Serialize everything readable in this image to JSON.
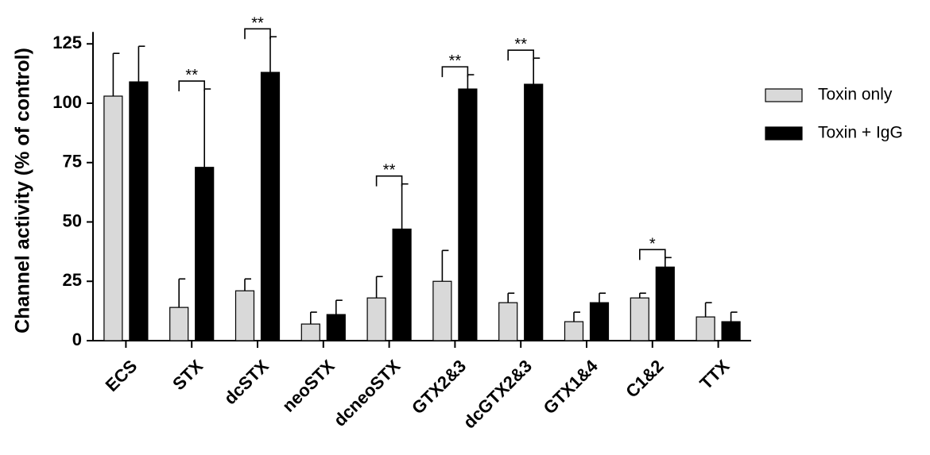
{
  "chart_data": {
    "type": "bar",
    "ylabel": "Channel activity (% of control)",
    "xlabel": "",
    "ylim": [
      0,
      130
    ],
    "yticks": [
      0,
      25,
      50,
      75,
      100,
      125
    ],
    "legend_position": "right",
    "categories": [
      "ECS",
      "STX",
      "dcSTX",
      "neoSTX",
      "dcneoSTX",
      "GTX2&3",
      "dcGTX2&3",
      "GTX1&4",
      "C1&2",
      "TTX"
    ],
    "series": [
      {
        "name": "Toxin only",
        "color": "#d9d9d9",
        "values": [
          103,
          14,
          21,
          7,
          18,
          25,
          16,
          8,
          18,
          10
        ],
        "errors": [
          18,
          12,
          5,
          5,
          9,
          13,
          4,
          4,
          2,
          6
        ]
      },
      {
        "name": "Toxin + IgG",
        "color": "#000000",
        "values": [
          109,
          73,
          113,
          11,
          47,
          106,
          108,
          16,
          31,
          8
        ],
        "errors": [
          15,
          33,
          15,
          6,
          19,
          6,
          11,
          4,
          4,
          4
        ]
      }
    ],
    "significance": [
      {
        "category": "STX",
        "label": "**"
      },
      {
        "category": "dcSTX",
        "label": "**"
      },
      {
        "category": "dcneoSTX",
        "label": "**"
      },
      {
        "category": "GTX2&3",
        "label": "**"
      },
      {
        "category": "dcGTX2&3",
        "label": "**"
      },
      {
        "category": "C1&2",
        "label": "*"
      }
    ]
  }
}
